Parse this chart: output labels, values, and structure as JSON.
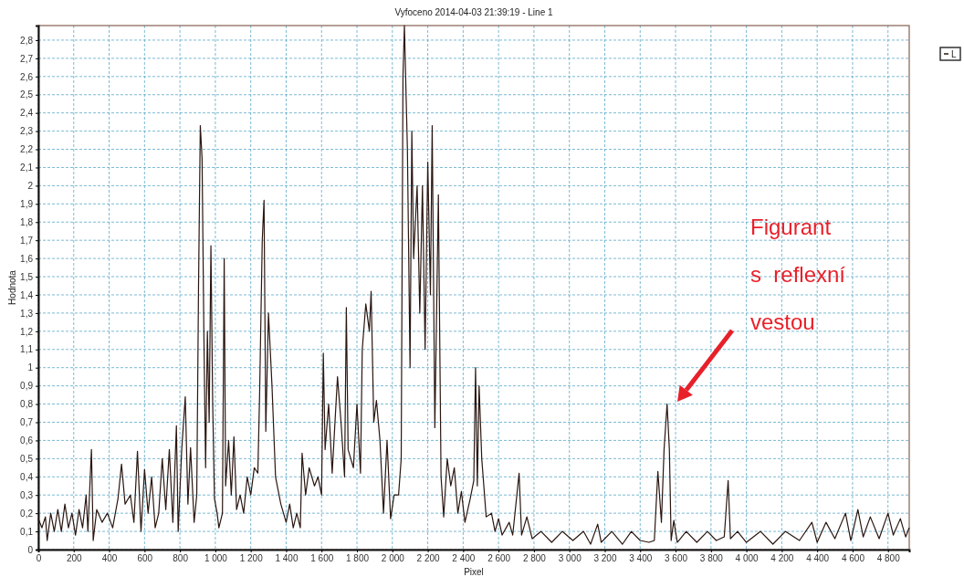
{
  "chart_data": {
    "type": "line",
    "title": "Vyfoceno 2014-04-03 21:39:19 - Line 1",
    "xlabel": "Pixel",
    "ylabel": "Hodnota",
    "annotations": [
      "Figurant\ns  reflexní\nvestou"
    ],
    "xlim": [
      0,
      4920
    ],
    "ylim": [
      0,
      2.88
    ],
    "xticks": [
      0,
      200,
      400,
      600,
      800,
      {
        "value": 1000,
        "label": "1 000"
      },
      {
        "value": 1200,
        "label": "1 200"
      },
      {
        "value": 1400,
        "label": "1 400"
      },
      {
        "value": 1600,
        "label": "1 600"
      },
      {
        "value": 1800,
        "label": "1 800"
      },
      {
        "value": 2000,
        "label": "2 000"
      },
      {
        "value": 2200,
        "label": "2 200"
      },
      {
        "value": 2400,
        "label": "2 400"
      },
      {
        "value": 2600,
        "label": "2 600"
      },
      {
        "value": 2800,
        "label": "2 800"
      },
      {
        "value": 3000,
        "label": "3 000"
      },
      {
        "value": 3200,
        "label": "3 200"
      },
      {
        "value": 3400,
        "label": "3 400"
      },
      {
        "value": 3600,
        "label": "3 600"
      },
      {
        "value": 3800,
        "label": "3 800"
      },
      {
        "value": 4000,
        "label": "4 000"
      },
      {
        "value": 4200,
        "label": "4 200"
      },
      {
        "value": 4400,
        "label": "4 400"
      },
      {
        "value": 4600,
        "label": "4 600"
      },
      {
        "value": 4800,
        "label": "4 800"
      }
    ],
    "yticks": [
      0,
      {
        "value": 0.1,
        "label": "0,1"
      },
      {
        "value": 0.2,
        "label": "0,2"
      },
      {
        "value": 0.3,
        "label": "0,3"
      },
      {
        "value": 0.4,
        "label": "0,4"
      },
      {
        "value": 0.5,
        "label": "0,5"
      },
      {
        "value": 0.6,
        "label": "0,6"
      },
      {
        "value": 0.7,
        "label": "0,7"
      },
      {
        "value": 0.8,
        "label": "0,8"
      },
      {
        "value": 0.9,
        "label": "0,9"
      },
      1,
      {
        "value": 1.1,
        "label": "1,1"
      },
      {
        "value": 1.2,
        "label": "1,2"
      },
      {
        "value": 1.3,
        "label": "1,3"
      },
      {
        "value": 1.4,
        "label": "1,4"
      },
      {
        "value": 1.5,
        "label": "1,5"
      },
      {
        "value": 1.6,
        "label": "1,6"
      },
      {
        "value": 1.7,
        "label": "1,7"
      },
      {
        "value": 1.8,
        "label": "1,8"
      },
      {
        "value": 1.9,
        "label": "1,9"
      },
      2,
      {
        "value": 2.1,
        "label": "2,1"
      },
      {
        "value": 2.2,
        "label": "2,2"
      },
      {
        "value": 2.3,
        "label": "2,3"
      },
      {
        "value": 2.4,
        "label": "2,4"
      },
      {
        "value": 2.5,
        "label": "2,5"
      },
      {
        "value": 2.6,
        "label": "2,6"
      },
      {
        "value": 2.7,
        "label": "2,7"
      },
      {
        "value": 2.8,
        "label": "2,8"
      }
    ],
    "grid": true,
    "legend": "top right",
    "series": [
      {
        "name": "L",
        "color": "#2a1610",
        "x": [
          0,
          20,
          40,
          50,
          70,
          90,
          110,
          130,
          150,
          170,
          190,
          210,
          230,
          250,
          270,
          280,
          300,
          310,
          330,
          360,
          390,
          420,
          450,
          470,
          490,
          520,
          540,
          560,
          580,
          600,
          620,
          640,
          660,
          680,
          700,
          720,
          740,
          760,
          780,
          790,
          810,
          830,
          845,
          860,
          880,
          895,
          905,
          915,
          925,
          935,
          945,
          955,
          965,
          975,
          985,
          995,
          1010,
          1020,
          1040,
          1050,
          1058,
          1075,
          1090,
          1105,
          1120,
          1140,
          1160,
          1180,
          1200,
          1220,
          1240,
          1250,
          1265,
          1275,
          1285,
          1300,
          1320,
          1340,
          1370,
          1400,
          1420,
          1440,
          1460,
          1480,
          1490,
          1510,
          1530,
          1560,
          1580,
          1600,
          1610,
          1620,
          1640,
          1660,
          1690,
          1710,
          1730,
          1740,
          1750,
          1780,
          1800,
          1820,
          1830,
          1850,
          1870,
          1880,
          1895,
          1910,
          1930,
          1950,
          1970,
          1990,
          2010,
          2035,
          2050,
          2060,
          2068,
          2075,
          2085,
          2100,
          2110,
          2120,
          2140,
          2155,
          2170,
          2185,
          2200,
          2215,
          2225,
          2240,
          2260,
          2275,
          2290,
          2310,
          2330,
          2350,
          2370,
          2390,
          2410,
          2440,
          2460,
          2470,
          2480,
          2490,
          2505,
          2530,
          2560,
          2580,
          2600,
          2620,
          2660,
          2680,
          2716,
          2730,
          2760,
          2790,
          2840,
          2900,
          2960,
          3020,
          3080,
          3120,
          3160,
          3180,
          3240,
          3300,
          3350,
          3400,
          3450,
          3480,
          3500,
          3520,
          3535,
          3552,
          3565,
          3575,
          3590,
          3610,
          3660,
          3720,
          3780,
          3830,
          3875,
          3897,
          3910,
          3950,
          4000,
          4080,
          4150,
          4220,
          4300,
          4370,
          4400,
          4450,
          4500,
          4560,
          4590,
          4630,
          4660,
          4700,
          4750,
          4800,
          4830,
          4870,
          4900,
          4920
        ],
        "values": [
          0.17,
          0.12,
          0.18,
          0.05,
          0.2,
          0.1,
          0.22,
          0.1,
          0.25,
          0.12,
          0.2,
          0.08,
          0.22,
          0.12,
          0.3,
          0.1,
          0.55,
          0.05,
          0.22,
          0.15,
          0.2,
          0.12,
          0.28,
          0.47,
          0.25,
          0.3,
          0.15,
          0.54,
          0.1,
          0.44,
          0.2,
          0.4,
          0.12,
          0.2,
          0.5,
          0.22,
          0.55,
          0.15,
          0.68,
          0.1,
          0.55,
          0.84,
          0.25,
          0.56,
          0.15,
          0.3,
          1.45,
          2.33,
          2.15,
          1.2,
          0.45,
          1.2,
          0.7,
          1.67,
          0.8,
          0.28,
          0.2,
          0.12,
          0.2,
          1.6,
          0.35,
          0.6,
          0.3,
          0.62,
          0.22,
          0.3,
          0.2,
          0.4,
          0.3,
          0.45,
          0.42,
          0.85,
          1.7,
          1.92,
          0.65,
          1.3,
          0.9,
          0.4,
          0.25,
          0.15,
          0.25,
          0.12,
          0.2,
          0.12,
          0.53,
          0.3,
          0.45,
          0.35,
          0.4,
          0.3,
          1.08,
          0.55,
          0.8,
          0.42,
          0.95,
          0.7,
          0.4,
          1.33,
          0.55,
          0.45,
          0.8,
          0.42,
          1.1,
          1.35,
          1.2,
          1.42,
          0.7,
          0.82,
          0.6,
          0.2,
          0.6,
          0.17,
          0.3,
          0.3,
          0.5,
          2.6,
          2.88,
          2.6,
          2.2,
          1.0,
          2.3,
          1.6,
          2.0,
          1.3,
          2.0,
          1.1,
          2.13,
          1.4,
          2.33,
          0.67,
          1.95,
          0.4,
          0.18,
          0.5,
          0.35,
          0.45,
          0.2,
          0.32,
          0.15,
          0.28,
          0.38,
          1.0,
          0.35,
          0.9,
          0.5,
          0.18,
          0.2,
          0.1,
          0.17,
          0.08,
          0.15,
          0.08,
          0.42,
          0.08,
          0.18,
          0.06,
          0.1,
          0.04,
          0.1,
          0.05,
          0.1,
          0.03,
          0.14,
          0.04,
          0.1,
          0.03,
          0.1,
          0.05,
          0.04,
          0.05,
          0.43,
          0.15,
          0.55,
          0.8,
          0.55,
          0.05,
          0.16,
          0.04,
          0.1,
          0.04,
          0.1,
          0.05,
          0.07,
          0.38,
          0.06,
          0.1,
          0.04,
          0.1,
          0.03,
          0.1,
          0.05,
          0.15,
          0.04,
          0.15,
          0.06,
          0.2,
          0.05,
          0.22,
          0.07,
          0.18,
          0.06,
          0.2,
          0.08,
          0.17,
          0.07,
          0.12
        ]
      }
    ]
  }
}
